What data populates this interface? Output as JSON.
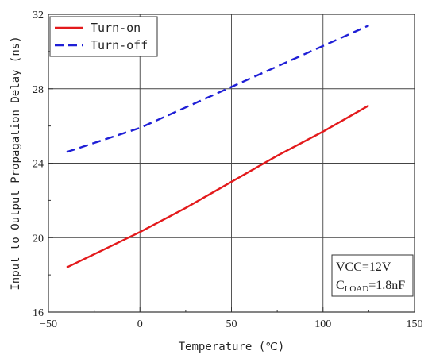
{
  "chart_data": {
    "type": "line",
    "xlabel": "Temperature (℃)",
    "ylabel": "Input to Output Propagation Delay (ns)",
    "xlim": [
      -50,
      150
    ],
    "ylim": [
      16,
      32
    ],
    "xticks": [
      -50,
      0,
      50,
      100,
      150
    ],
    "yticks": [
      16,
      20,
      24,
      28,
      32
    ],
    "grid": true,
    "legend_position": "top-left",
    "series": [
      {
        "name": "Turn-on",
        "color": "#e31a1c",
        "style": "solid",
        "x": [
          -40,
          0,
          25,
          50,
          75,
          100,
          125
        ],
        "y": [
          18.4,
          20.3,
          21.6,
          23.0,
          24.4,
          25.7,
          27.1
        ]
      },
      {
        "name": "Turn-off",
        "color": "#1f1fd6",
        "style": "dashed",
        "x": [
          -40,
          0,
          25,
          50,
          75,
          100,
          125
        ],
        "y": [
          24.6,
          25.9,
          27.0,
          28.1,
          29.2,
          30.3,
          31.4
        ]
      }
    ],
    "annotation": {
      "line1": "VCC=12V",
      "line2_prefix": "C",
      "line2_sub": "LOAD",
      "line2_suffix": "=1.8nF"
    }
  }
}
